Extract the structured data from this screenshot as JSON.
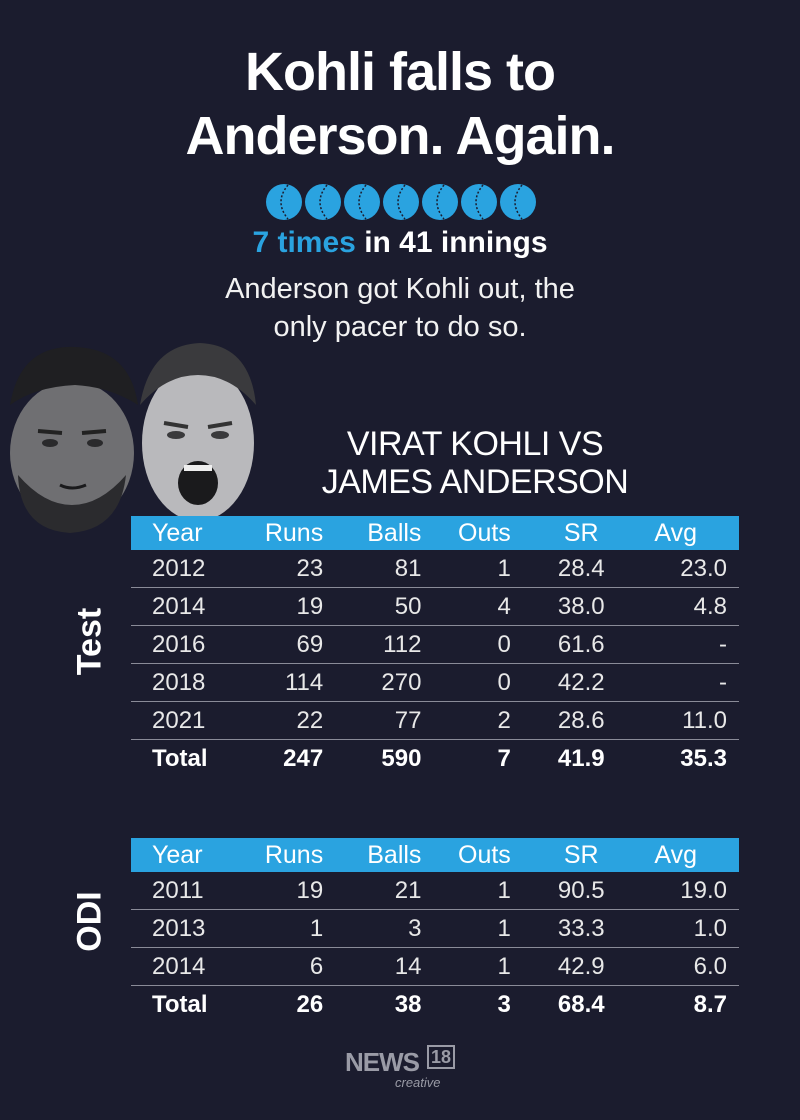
{
  "title": {
    "line1": "Kohli falls to",
    "line2": "Anderson. Again."
  },
  "balls": {
    "count": 7,
    "color": "#2aa3e0",
    "icon": "cricket-ball-icon"
  },
  "tagline": {
    "highlight": "7 times",
    "rest": "in 41 innings"
  },
  "description": {
    "line1": "Anderson got Kohli out, the",
    "line2": "only pacer to do so."
  },
  "matchup": {
    "line1": "VIRAT KOHLI VS",
    "line2": "JAMES ANDERSON"
  },
  "test": {
    "label": "Test",
    "headers": [
      "Year",
      "Runs",
      "Balls",
      "Outs",
      "SR",
      "Avg"
    ],
    "rows": [
      [
        "2012",
        "23",
        "81",
        "1",
        "28.4",
        "23.0"
      ],
      [
        "2014",
        "19",
        "50",
        "4",
        "38.0",
        "4.8"
      ],
      [
        "2016",
        "69",
        "112",
        "0",
        "61.6",
        "-"
      ],
      [
        "2018",
        "114",
        "270",
        "0",
        "42.2",
        "-"
      ],
      [
        "2021",
        "22",
        "77",
        "2",
        "28.6",
        "11.0"
      ]
    ],
    "total": [
      "Total",
      "247",
      "590",
      "7",
      "41.9",
      "35.3"
    ]
  },
  "odi": {
    "label": "ODI",
    "headers": [
      "Year",
      "Runs",
      "Balls",
      "Outs",
      "SR",
      "Avg"
    ],
    "rows": [
      [
        "2011",
        "19",
        "21",
        "1",
        "90.5",
        "19.0"
      ],
      [
        "2013",
        "1",
        "3",
        "1",
        "33.3",
        "1.0"
      ],
      [
        "2014",
        "6",
        "14",
        "1",
        "42.9",
        "6.0"
      ]
    ],
    "total": [
      "Total",
      "26",
      "38",
      "3",
      "68.4",
      "8.7"
    ]
  },
  "logo": {
    "news": "NEWS",
    "number": "18",
    "sub": "creative"
  },
  "colors": {
    "background": "#1b1c2e",
    "accent": "#2aa3e0"
  }
}
